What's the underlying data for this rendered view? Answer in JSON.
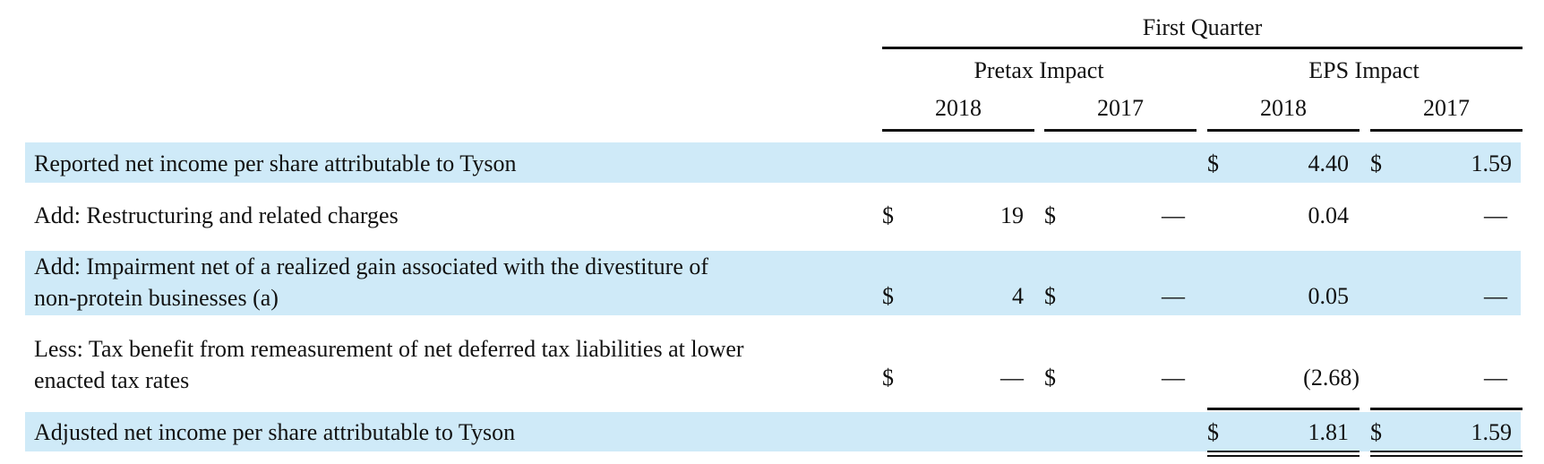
{
  "header": {
    "period": "First Quarter",
    "groups": [
      "Pretax Impact",
      "EPS Impact"
    ],
    "years": [
      "2018",
      "2017",
      "2018",
      "2017"
    ]
  },
  "rows": [
    {
      "label_lines": [
        "Reported net income per share attributable to Tyson"
      ],
      "pretax_2018": {
        "cur": "",
        "val": ""
      },
      "pretax_2017": {
        "cur": "",
        "val": ""
      },
      "eps_2018": {
        "cur": "$",
        "val": "4.40"
      },
      "eps_2017": {
        "cur": "$",
        "val": "1.59"
      }
    },
    {
      "label_lines": [
        "Add: Restructuring and related charges"
      ],
      "pretax_2018": {
        "cur": "$",
        "val": "19"
      },
      "pretax_2017": {
        "cur": "$",
        "val": "—"
      },
      "eps_2018": {
        "cur": "",
        "val": "0.04"
      },
      "eps_2017": {
        "cur": "",
        "val": "—"
      }
    },
    {
      "label_lines": [
        "Add: Impairment net of a realized gain associated with the divestiture of",
        "non-protein businesses (a)"
      ],
      "pretax_2018": {
        "cur": "$",
        "val": "4"
      },
      "pretax_2017": {
        "cur": "$",
        "val": "—"
      },
      "eps_2018": {
        "cur": "",
        "val": "0.05"
      },
      "eps_2017": {
        "cur": "",
        "val": "—"
      }
    },
    {
      "label_lines": [
        "Less: Tax benefit from remeasurement of net deferred tax liabilities at lower",
        "enacted tax rates"
      ],
      "pretax_2018": {
        "cur": "$",
        "val": "—"
      },
      "pretax_2017": {
        "cur": "$",
        "val": "—"
      },
      "eps_2018": {
        "cur": "",
        "val": "(2.68)"
      },
      "eps_2017": {
        "cur": "",
        "val": "—"
      }
    },
    {
      "label_lines": [
        "Adjusted net income per share attributable to Tyson"
      ],
      "pretax_2018": {
        "cur": "",
        "val": ""
      },
      "pretax_2017": {
        "cur": "",
        "val": ""
      },
      "eps_2018": {
        "cur": "$",
        "val": "1.81"
      },
      "eps_2017": {
        "cur": "$",
        "val": "1.59"
      }
    }
  ]
}
